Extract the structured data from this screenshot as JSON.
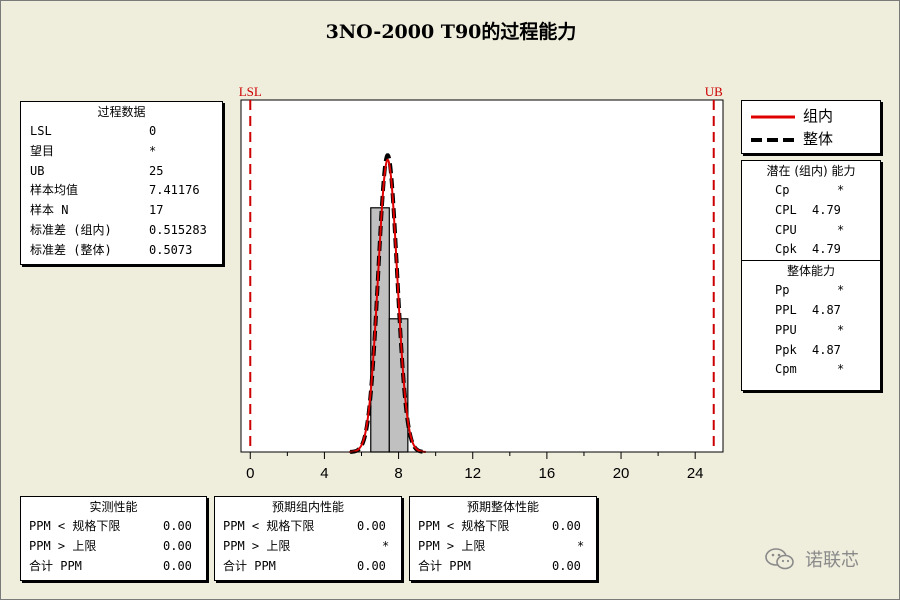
{
  "title": "3NO-2000  T90的过程能力",
  "process_data": {
    "title": "过程数据",
    "rows": [
      {
        "label": "LSL",
        "value": "0"
      },
      {
        "label": "望目",
        "value": "*"
      },
      {
        "label": "UB",
        "value": "25"
      },
      {
        "label": "样本均值",
        "value": "7.41176"
      },
      {
        "label": "样本 N",
        "value": "17"
      },
      {
        "label": "标准差 (组内)",
        "value": "0.515283"
      },
      {
        "label": "标准差 (整体)",
        "value": "0.5073"
      }
    ]
  },
  "legend": {
    "items": [
      {
        "label": "组内",
        "color": "#e00000",
        "style": "solid"
      },
      {
        "label": "整体",
        "color": "#000000",
        "style": "dashed"
      }
    ]
  },
  "potential": {
    "title": "潜在 (组内) 能力",
    "rows": [
      {
        "label": "Cp",
        "value": "*"
      },
      {
        "label": "CPL",
        "value": "4.79"
      },
      {
        "label": "CPU",
        "value": "*"
      },
      {
        "label": "Cpk",
        "value": "4.79"
      }
    ]
  },
  "overall": {
    "title": "整体能力",
    "rows": [
      {
        "label": "Pp",
        "value": "*"
      },
      {
        "label": "PPL",
        "value": "4.87"
      },
      {
        "label": "PPU",
        "value": "*"
      },
      {
        "label": "Ppk",
        "value": "4.87"
      },
      {
        "label": "Cpm",
        "value": "*"
      }
    ]
  },
  "observed": {
    "title": "实测性能",
    "rows": [
      {
        "label": "PPM < 规格下限",
        "value": "0.00"
      },
      {
        "label": "PPM > 上限",
        "value": "0.00"
      },
      {
        "label": "合计 PPM",
        "value": "0.00"
      }
    ]
  },
  "exp_within": {
    "title": "预期组内性能",
    "rows": [
      {
        "label": "PPM < 规格下限",
        "value": "0.00"
      },
      {
        "label": "PPM > 上限",
        "value": "*"
      },
      {
        "label": "合计 PPM",
        "value": "0.00"
      }
    ]
  },
  "exp_overall": {
    "title": "预期整体性能",
    "rows": [
      {
        "label": "PPM < 规格下限",
        "value": "0.00"
      },
      {
        "label": "PPM > 上限",
        "value": "*"
      },
      {
        "label": "合计 PPM",
        "value": "0.00"
      }
    ]
  },
  "watermark": {
    "text": "诺联芯"
  },
  "chart_data": {
    "type": "bar",
    "xlim": [
      -0.5,
      25.5
    ],
    "xticks": [
      0,
      4,
      8,
      12,
      16,
      20,
      24
    ],
    "xtick_labels": [
      "0",
      "4",
      "8",
      "12",
      "16",
      "20",
      "24"
    ],
    "histogram": {
      "bin_edges": [
        6.5,
        7.5,
        8.5
      ],
      "counts": [
        11,
        6
      ],
      "fill": "#c0c0c0"
    },
    "spec_limits": [
      {
        "name": "LSL",
        "value": 0,
        "color": "#cc0000"
      },
      {
        "name": "UB",
        "value": 25,
        "color": "#cc0000"
      }
    ],
    "normal_curves": [
      {
        "name": "组内",
        "mean": 7.41176,
        "sd": 0.515283,
        "color": "#e00000",
        "style": "solid"
      },
      {
        "name": "整体",
        "mean": 7.41176,
        "sd": 0.5073,
        "color": "#000000",
        "style": "dashed"
      }
    ]
  }
}
